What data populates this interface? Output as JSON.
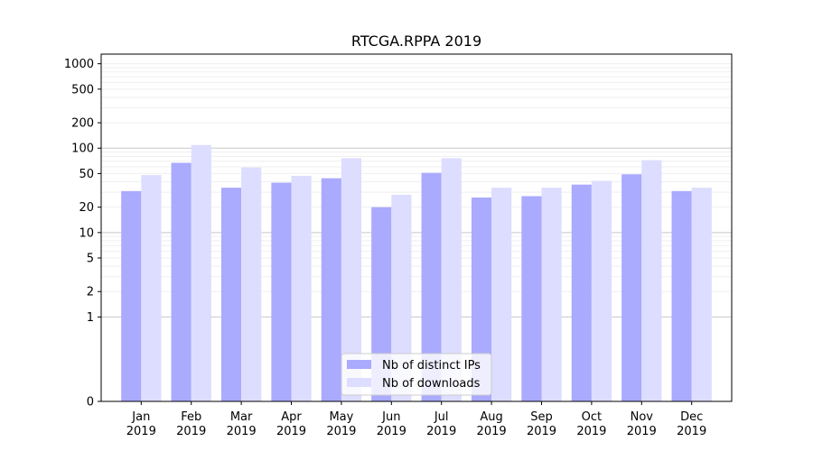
{
  "chart_data": {
    "type": "bar",
    "title": "RTCGA.RPPA 2019",
    "xlabel": "",
    "ylabel": "",
    "y_scale": "symlog",
    "ylim": [
      0,
      1300
    ],
    "y_ticks": [
      0,
      1,
      2,
      5,
      10,
      20,
      50,
      100,
      200,
      500,
      1000
    ],
    "y_tick_labels": [
      "0",
      "1",
      "2",
      "5",
      "10",
      "20",
      "50",
      "100",
      "200",
      "500",
      "1000"
    ],
    "grid": true,
    "legend_position": "bottom-center",
    "categories": [
      [
        "Jan",
        "2019"
      ],
      [
        "Feb",
        "2019"
      ],
      [
        "Mar",
        "2019"
      ],
      [
        "Apr",
        "2019"
      ],
      [
        "May",
        "2019"
      ],
      [
        "Jun",
        "2019"
      ],
      [
        "Jul",
        "2019"
      ],
      [
        "Aug",
        "2019"
      ],
      [
        "Sep",
        "2019"
      ],
      [
        "Oct",
        "2019"
      ],
      [
        "Nov",
        "2019"
      ],
      [
        "Dec",
        "2019"
      ]
    ],
    "series": [
      {
        "name": "Nb of distinct IPs",
        "color": "#aaaaff",
        "values": [
          31,
          67,
          34,
          39,
          44,
          20,
          51,
          26,
          27,
          37,
          49,
          31
        ]
      },
      {
        "name": "Nb of downloads",
        "color": "#ddddff",
        "values": [
          48,
          109,
          59,
          47,
          76,
          28,
          76,
          34,
          34,
          41,
          72,
          34
        ]
      }
    ]
  }
}
